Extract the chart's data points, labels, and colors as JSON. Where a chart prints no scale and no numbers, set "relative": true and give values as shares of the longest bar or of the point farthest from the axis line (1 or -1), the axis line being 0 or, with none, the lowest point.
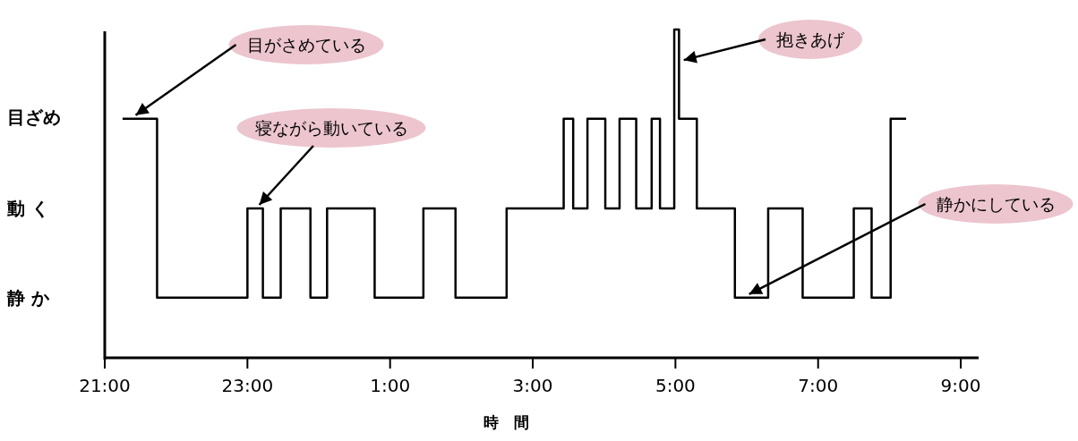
{
  "chart_data": {
    "type": "step",
    "xlabel": "時　間",
    "x": [
      "2000-01-01T21:15",
      "2000-01-01T21:44",
      "2000-01-01T23:00",
      "2000-01-01T23:13",
      "2000-01-01T23:28",
      "2000-01-01T23:53",
      "2000-01-02T00:07",
      "2000-01-02T00:47",
      "2000-01-02T01:28",
      "2000-01-02T01:55",
      "2000-01-02T02:38",
      "2000-01-02T03:26",
      "2000-01-02T03:34",
      "2000-01-02T03:46",
      "2000-01-02T04:01",
      "2000-01-02T04:13",
      "2000-01-02T04:27",
      "2000-01-02T04:40",
      "2000-01-02T04:47",
      "2000-01-02T04:59",
      "2000-01-02T05:03",
      "2000-01-02T05:18",
      "2000-01-02T05:50",
      "2000-01-02T06:18",
      "2000-01-02T06:47",
      "2000-01-02T07:30",
      "2000-01-02T07:45",
      "2000-01-02T08:01",
      "2000-01-02T08:14"
    ],
    "values": [
      0.728,
      0.183,
      0.455,
      0.183,
      0.455,
      0.183,
      0.455,
      0.183,
      0.455,
      0.183,
      0.455,
      0.728,
      0.455,
      0.728,
      0.455,
      0.728,
      0.455,
      0.728,
      0.455,
      1,
      0.728,
      0.455,
      0.183,
      0.455,
      0.183,
      0.455,
      0.183,
      0.728,
      0.728
    ],
    "relative": true,
    "color": "#000000",
    "xlim": [
      "2000-01-01T21:00",
      "2000-01-02T09:15"
    ],
    "xticks": [
      {
        "value": "2000-01-01T21:00",
        "label": "21:00"
      },
      {
        "value": "2000-01-01T23:00",
        "label": "23:00"
      },
      {
        "value": "2000-01-02T01:00",
        "label": "1:00"
      },
      {
        "value": "2000-01-02T03:00",
        "label": "3:00"
      },
      {
        "value": "2000-01-02T05:00",
        "label": "5:00"
      },
      {
        "value": "2000-01-02T07:00",
        "label": "7:00"
      },
      {
        "value": "2000-01-02T09:00",
        "label": "9:00"
      }
    ],
    "grid": false,
    "marker": "none",
    "line_style": "solid",
    "annotations": [
      {
        "text": "目がさめている",
        "x": "2000-01-01T21:26",
        "y": 0.728
      },
      {
        "text": "寝ながら動いている",
        "x": "2000-01-01T23:10",
        "y": 0.455
      },
      {
        "text": "抱きあげ",
        "x": "2000-01-02T05:07",
        "y": 0.907
      },
      {
        "text": "静かにしている",
        "x": "2000-01-02T06:02",
        "y": 0.183
      },
      "目ざめ",
      "動 く",
      "静 か"
    ]
  }
}
